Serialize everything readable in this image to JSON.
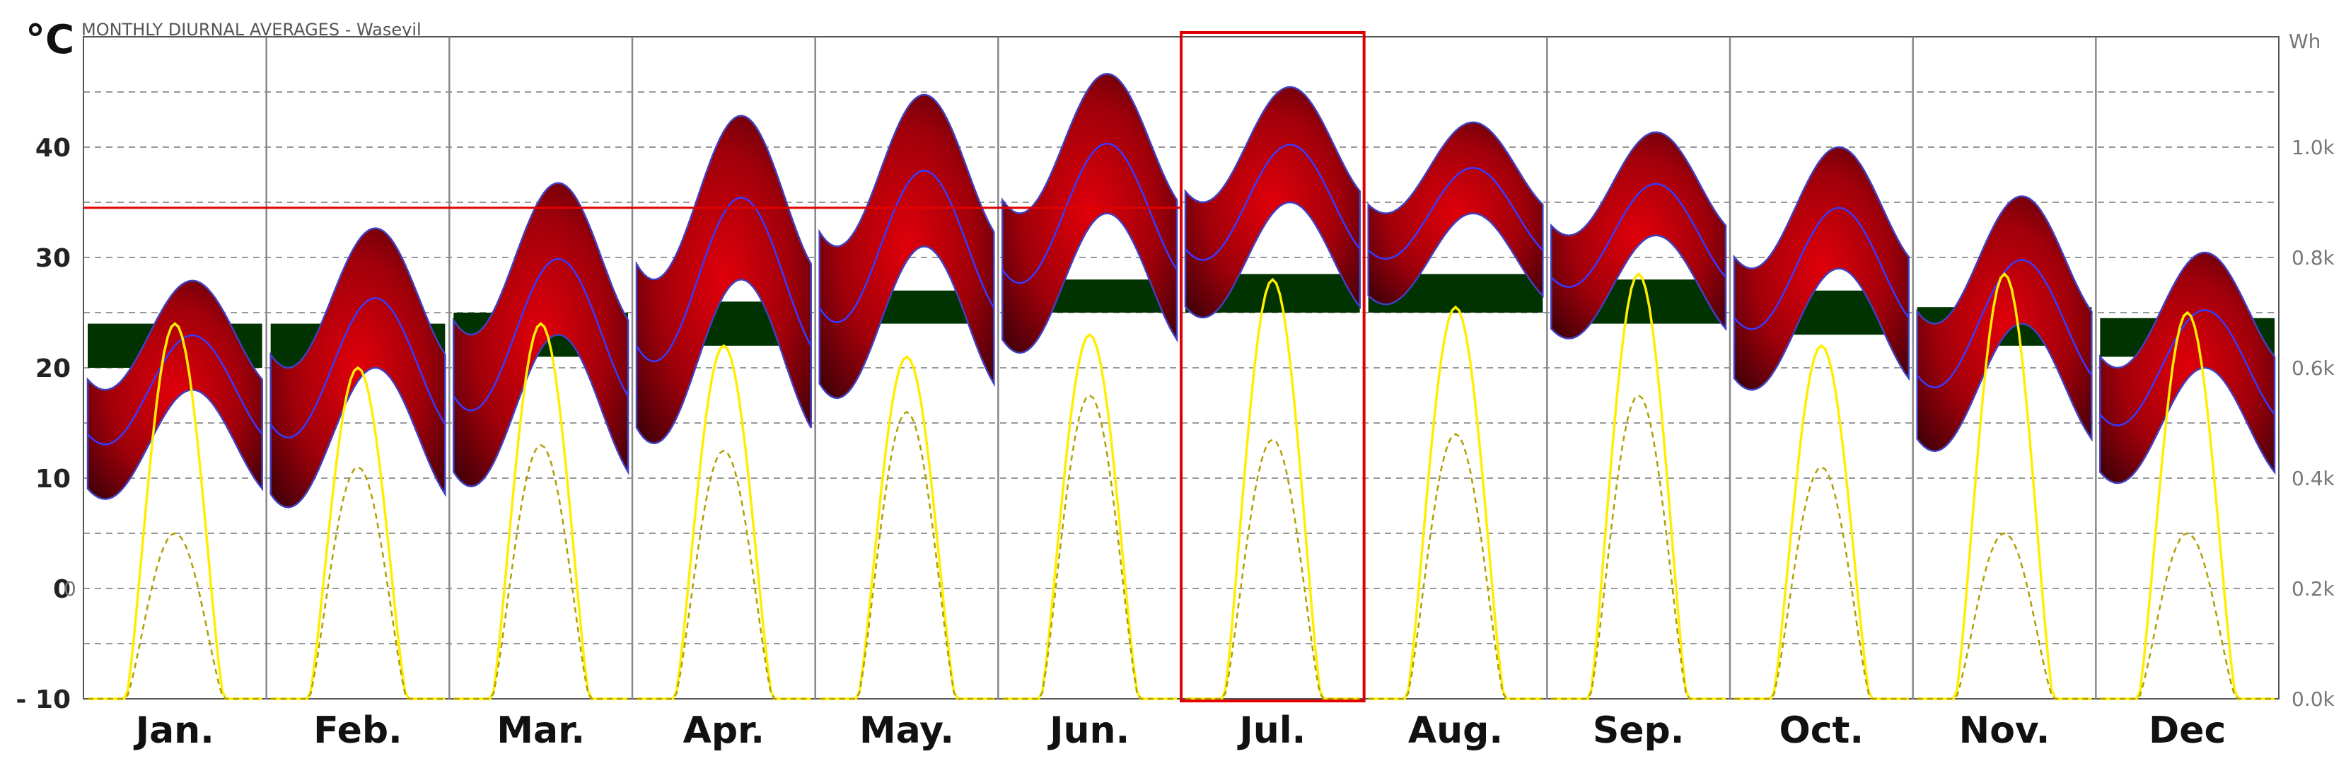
{
  "chart_data": {
    "type": "area",
    "title": "MONTHLY DIURNAL AVERAGES - Waseyil",
    "yunit_left": "°C",
    "yunit_right": "Wh",
    "ylim": [
      -10,
      50
    ],
    "y2lim": [
      0,
      1200
    ],
    "yticks": [
      {
        "value": 40,
        "label": "40"
      },
      {
        "value": 30,
        "label": "30"
      },
      {
        "value": 20,
        "label": "20"
      },
      {
        "value": 10,
        "label": "10"
      },
      {
        "value": 0,
        "label": "0"
      },
      {
        "value": -10,
        "label": "- 10"
      }
    ],
    "y2ticks": [
      {
        "value": 1000,
        "label": "1.0k"
      },
      {
        "value": 800,
        "label": "0.8k"
      },
      {
        "value": 600,
        "label": "0.6k"
      },
      {
        "value": 400,
        "label": "0.4k"
      },
      {
        "value": 200,
        "label": "0.2k"
      },
      {
        "value": 0,
        "label": "0.0k"
      }
    ],
    "extra_zero_label": "0",
    "comfort_line": 34.5,
    "highlight_month": "Jul.",
    "categories": [
      "Jan.",
      "Feb.",
      "Mar.",
      "Apr.",
      "May.",
      "Jun.",
      "Jul.",
      "Aug.",
      "Sep.",
      "Oct.",
      "Nov.",
      "Dec"
    ],
    "series": [
      {
        "values": [
          18,
          20,
          23,
          28,
          31,
          34,
          35,
          34,
          32,
          29,
          24,
          20
        ]
      },
      {
        "values": [
          24,
          29,
          33,
          37,
          38,
          40,
          41,
          37,
          37,
          35,
          30,
          26
        ]
      },
      {
        "values": [
          6,
          6,
          8,
          10,
          13,
          17,
          22,
          22,
          20,
          15,
          9,
          7
        ]
      },
      {
        "values": [
          [
            20,
            24
          ],
          [
            20,
            24
          ],
          [
            21,
            25
          ],
          [
            22,
            26
          ],
          [
            24,
            27
          ],
          [
            25,
            28
          ],
          [
            25,
            28.5
          ],
          [
            25,
            28.5
          ],
          [
            24,
            28
          ],
          [
            23,
            27
          ],
          [
            22,
            25.5
          ],
          [
            21,
            24.5
          ]
        ]
      },
      {
        "values": [
          680,
          600,
          680,
          640,
          620,
          660,
          760,
          710,
          770,
          640,
          770,
          700
        ]
      },
      {
        "values": [
          300,
          420,
          460,
          450,
          520,
          550,
          470,
          480,
          550,
          420,
          300,
          300
        ]
      }
    ],
    "grid": true
  }
}
